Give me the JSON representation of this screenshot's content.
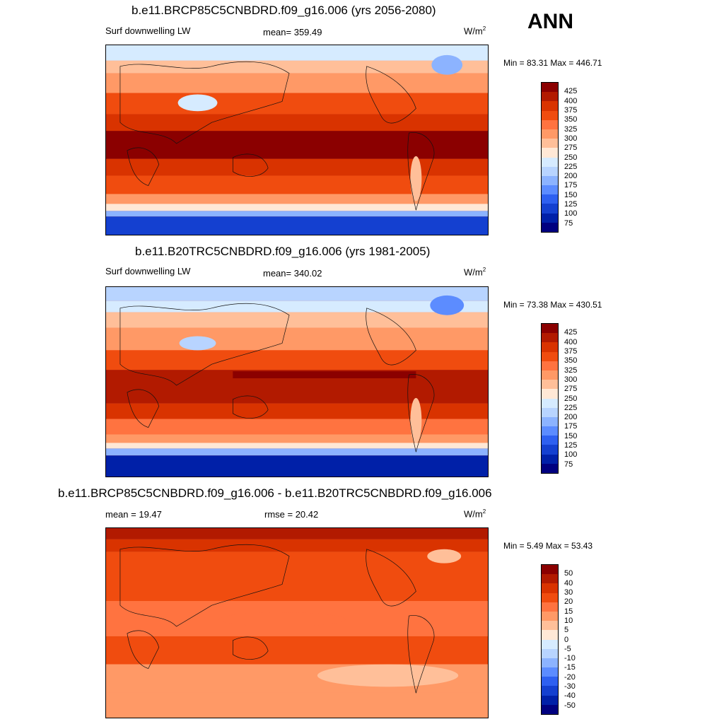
{
  "season": "ANN",
  "panels": [
    {
      "id": "future",
      "title": "b.e11.BRCP85C5CNBDRD.f09_g16.006 (yrs 2056-2080)",
      "left_label": "Surf downwelling LW",
      "mid_label": "mean= 359.49",
      "units": "W/m",
      "units_sup": "2",
      "minmax": "Min =  83.31 Max = 446.71",
      "levels": [
        "425",
        "400",
        "375",
        "350",
        "325",
        "300",
        "275",
        "250",
        "225",
        "200",
        "175",
        "150",
        "125",
        "100",
        "75"
      ],
      "colors": [
        "#8b0000",
        "#b21a00",
        "#d93300",
        "#f04c0f",
        "#ff7340",
        "#ff9966",
        "#ffbf99",
        "#ffe8d6",
        "#d6ebff",
        "#b8d4ff",
        "#8cb3ff",
        "#5c8cff",
        "#2e60f0",
        "#1440d0",
        "#0020a8",
        "#000080"
      ]
    },
    {
      "id": "historical",
      "title": "b.e11.B20TRC5CNBDRD.f09_g16.006 (yrs 1981-2005)",
      "left_label": "Surf downwelling LW",
      "mid_label": "mean= 340.02",
      "units": "W/m",
      "units_sup": "2",
      "minmax": "Min =  73.38 Max = 430.51",
      "levels": [
        "425",
        "400",
        "375",
        "350",
        "325",
        "300",
        "275",
        "250",
        "225",
        "200",
        "175",
        "150",
        "125",
        "100",
        "75"
      ],
      "colors": [
        "#8b0000",
        "#b21a00",
        "#d93300",
        "#f04c0f",
        "#ff7340",
        "#ff9966",
        "#ffbf99",
        "#ffe8d6",
        "#d6ebff",
        "#b8d4ff",
        "#8cb3ff",
        "#5c8cff",
        "#2e60f0",
        "#1440d0",
        "#0020a8",
        "#000080"
      ]
    },
    {
      "id": "difference",
      "title": "b.e11.BRCP85C5CNBDRD.f09_g16.006 - b.e11.B20TRC5CNBDRD.f09_g16.006",
      "left_label": "mean =  19.47",
      "mid_label": "rmse =  20.42",
      "units": "W/m",
      "units_sup": "2",
      "minmax": "Min =   5.49 Max =  53.43",
      "levels": [
        "50",
        "40",
        "30",
        "20",
        "15",
        "10",
        "5",
        "0",
        "-5",
        "-10",
        "-15",
        "-20",
        "-30",
        "-40",
        "-50"
      ],
      "colors": [
        "#8b0000",
        "#b21a00",
        "#d93300",
        "#f04c0f",
        "#ff7340",
        "#ff9966",
        "#ffbf99",
        "#ffe8d6",
        "#d6ebff",
        "#b8d4ff",
        "#8cb3ff",
        "#5c8cff",
        "#2e60f0",
        "#1440d0",
        "#0020a8",
        "#000080"
      ]
    }
  ]
}
